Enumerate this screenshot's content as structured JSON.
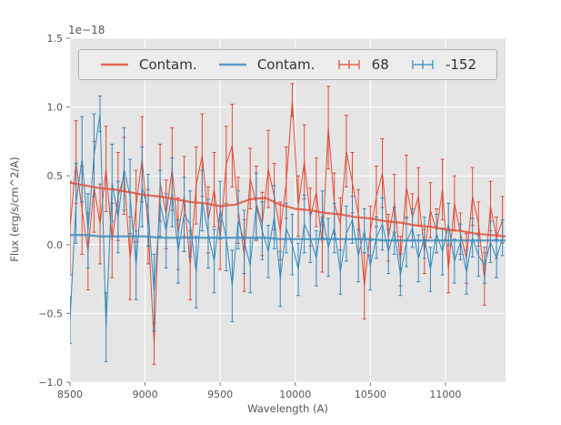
{
  "figure": {
    "offset_text": "1e−18",
    "xlabel": "Wavelength (A)",
    "ylabel": "Flux (erg/s/cm^2/A)",
    "bg": "#ffffff",
    "plot_bg": "#e5e5e5",
    "grid_color": "#ffffff",
    "tick_color": "#555555"
  },
  "legend": {
    "items": [
      {
        "label": "Contam.",
        "type": "line",
        "color": "#e24a33"
      },
      {
        "label": "Contam.",
        "type": "line",
        "color": "#348abd"
      },
      {
        "label": "68",
        "type": "errorbar",
        "color": "#e24a33"
      },
      {
        "label": "-152",
        "type": "errorbar",
        "color": "#348abd"
      }
    ]
  },
  "chart_data": {
    "type": "line",
    "title": "",
    "xlabel": "Wavelength (A)",
    "ylabel": "Flux (erg/s/cm^2/A)",
    "y_offset_factor": "1e-18",
    "xlim": [
      8500,
      11400
    ],
    "ylim": [
      -1.0,
      1.5
    ],
    "xticks": [
      8500,
      9000,
      9500,
      10000,
      10500,
      11000
    ],
    "yticks": [
      -1.0,
      -0.5,
      0.0,
      0.5,
      1.0,
      1.5
    ],
    "grid": true,
    "legend_position": "top",
    "series": [
      {
        "name": "Contam.",
        "color": "#e24a33",
        "style": "smooth",
        "linewidth": 2.2,
        "x_start": 8500,
        "x_step": 100,
        "y": [
          0.45,
          0.43,
          0.41,
          0.4,
          0.38,
          0.36,
          0.35,
          0.33,
          0.31,
          0.3,
          0.28,
          0.29,
          0.33,
          0.34,
          0.29,
          0.26,
          0.25,
          0.23,
          0.22,
          0.2,
          0.19,
          0.17,
          0.16,
          0.14,
          0.13,
          0.11,
          0.1,
          0.08,
          0.07,
          0.06
        ]
      },
      {
        "name": "Contam.",
        "color": "#348abd",
        "style": "smooth",
        "linewidth": 2.2,
        "x_start": 8500,
        "x_step": 100,
        "y": [
          0.07,
          0.07,
          0.06,
          0.06,
          0.06,
          0.06,
          0.05,
          0.05,
          0.05,
          0.05,
          0.05,
          0.05,
          0.05,
          0.05,
          0.04,
          0.04,
          0.04,
          0.04,
          0.04,
          0.04,
          0.04,
          0.03,
          0.03,
          0.03,
          0.03,
          0.03,
          0.03,
          0.03,
          0.03,
          0.03
        ]
      },
      {
        "name": "68",
        "color": "#e24a33",
        "style": "errorbar",
        "linewidth": 1,
        "x_start": 8500,
        "x_step": 40,
        "y": [
          0.12,
          0.6,
          0.25,
          -0.05,
          0.42,
          0.15,
          0.55,
          0.03,
          0.35,
          0.5,
          -0.1,
          0.28,
          0.62,
          0.13,
          -0.72,
          0.45,
          0.22,
          0.55,
          0.08,
          0.35,
          -0.15,
          0.43,
          0.65,
          0.18,
          0.4,
          0.05,
          0.58,
          0.72,
          0.25,
          -0.08,
          0.48,
          0.3,
          0.15,
          0.55,
          0.35,
          0.1,
          0.45,
          1.05,
          0.28,
          0.6,
          0.2,
          0.38,
          0.0,
          0.85,
          0.3,
          0.15,
          0.68,
          0.45,
          0.22,
          -0.3,
          0.1,
          0.35,
          0.52,
          0.05,
          0.3,
          -0.12,
          0.42,
          0.2,
          0.35,
          -0.05,
          0.25,
          0.1,
          0.4,
          -0.18,
          0.3,
          0.08,
          -0.1,
          0.35,
          0.15,
          -0.25,
          0.28,
          0.05,
          0.18
        ],
        "yerr": [
          0.34,
          0.3,
          0.32,
          0.28,
          0.33,
          0.29,
          0.31,
          0.27,
          0.32,
          0.28,
          0.3,
          0.26,
          0.31,
          0.27,
          0.15,
          0.28,
          0.25,
          0.3,
          0.26,
          0.29,
          0.25,
          0.28,
          0.3,
          0.24,
          0.27,
          0.23,
          0.28,
          0.3,
          0.24,
          0.26,
          0.22,
          0.27,
          0.23,
          0.28,
          0.24,
          0.21,
          0.26,
          0.12,
          0.22,
          0.27,
          0.21,
          0.25,
          0.2,
          0.3,
          0.22,
          0.19,
          0.26,
          0.22,
          0.18,
          0.24,
          0.18,
          0.22,
          0.25,
          0.17,
          0.21,
          0.18,
          0.23,
          0.17,
          0.21,
          0.16,
          0.2,
          0.16,
          0.22,
          0.17,
          0.2,
          0.15,
          0.18,
          0.21,
          0.16,
          0.19,
          0.18,
          0.15,
          0.17
        ]
      },
      {
        "name": "-152",
        "color": "#348abd",
        "style": "errorbar",
        "linewidth": 1,
        "x_start": 8500,
        "x_step": 40,
        "y": [
          -0.55,
          0.3,
          0.62,
          0.1,
          0.65,
          0.95,
          -0.6,
          0.45,
          0.2,
          0.55,
          0.35,
          -0.15,
          0.42,
          0.25,
          -0.35,
          0.3,
          0.1,
          0.38,
          -0.05,
          0.22,
          0.15,
          -0.2,
          0.32,
          0.08,
          -0.12,
          0.25,
          0.05,
          -0.3,
          0.18,
          0.02,
          -0.15,
          0.28,
          0.1,
          -0.05,
          0.2,
          -0.25,
          0.12,
          0.0,
          -0.18,
          0.15,
          0.05,
          -0.1,
          0.22,
          -0.02,
          0.12,
          -0.2,
          0.08,
          0.18,
          -0.08,
          0.1,
          -0.15,
          0.05,
          0.15,
          -0.05,
          0.1,
          -0.22,
          0.02,
          0.12,
          -0.1,
          0.05,
          -0.18,
          0.08,
          -0.05,
          0.15,
          -0.12,
          0.02,
          -0.2,
          0.05,
          -0.08,
          -0.15,
          0.02,
          -0.1,
          0.05
        ],
        "yerr": [
          0.17,
          0.29,
          0.31,
          0.27,
          0.3,
          0.13,
          0.25,
          0.28,
          0.26,
          0.3,
          0.27,
          0.25,
          0.29,
          0.26,
          0.28,
          0.24,
          0.27,
          0.25,
          0.23,
          0.27,
          0.24,
          0.26,
          0.22,
          0.25,
          0.23,
          0.21,
          0.24,
          0.26,
          0.21,
          0.23,
          0.2,
          0.24,
          0.21,
          0.19,
          0.23,
          0.2,
          0.18,
          0.22,
          0.19,
          0.21,
          0.18,
          0.2,
          0.17,
          0.21,
          0.18,
          0.16,
          0.2,
          0.17,
          0.19,
          0.16,
          0.18,
          0.15,
          0.19,
          0.16,
          0.17,
          0.15,
          0.18,
          0.14,
          0.17,
          0.15,
          0.16,
          0.14,
          0.17,
          0.15,
          0.16,
          0.13,
          0.16,
          0.14,
          0.15,
          0.13,
          0.15,
          0.14,
          0.13
        ]
      }
    ]
  }
}
